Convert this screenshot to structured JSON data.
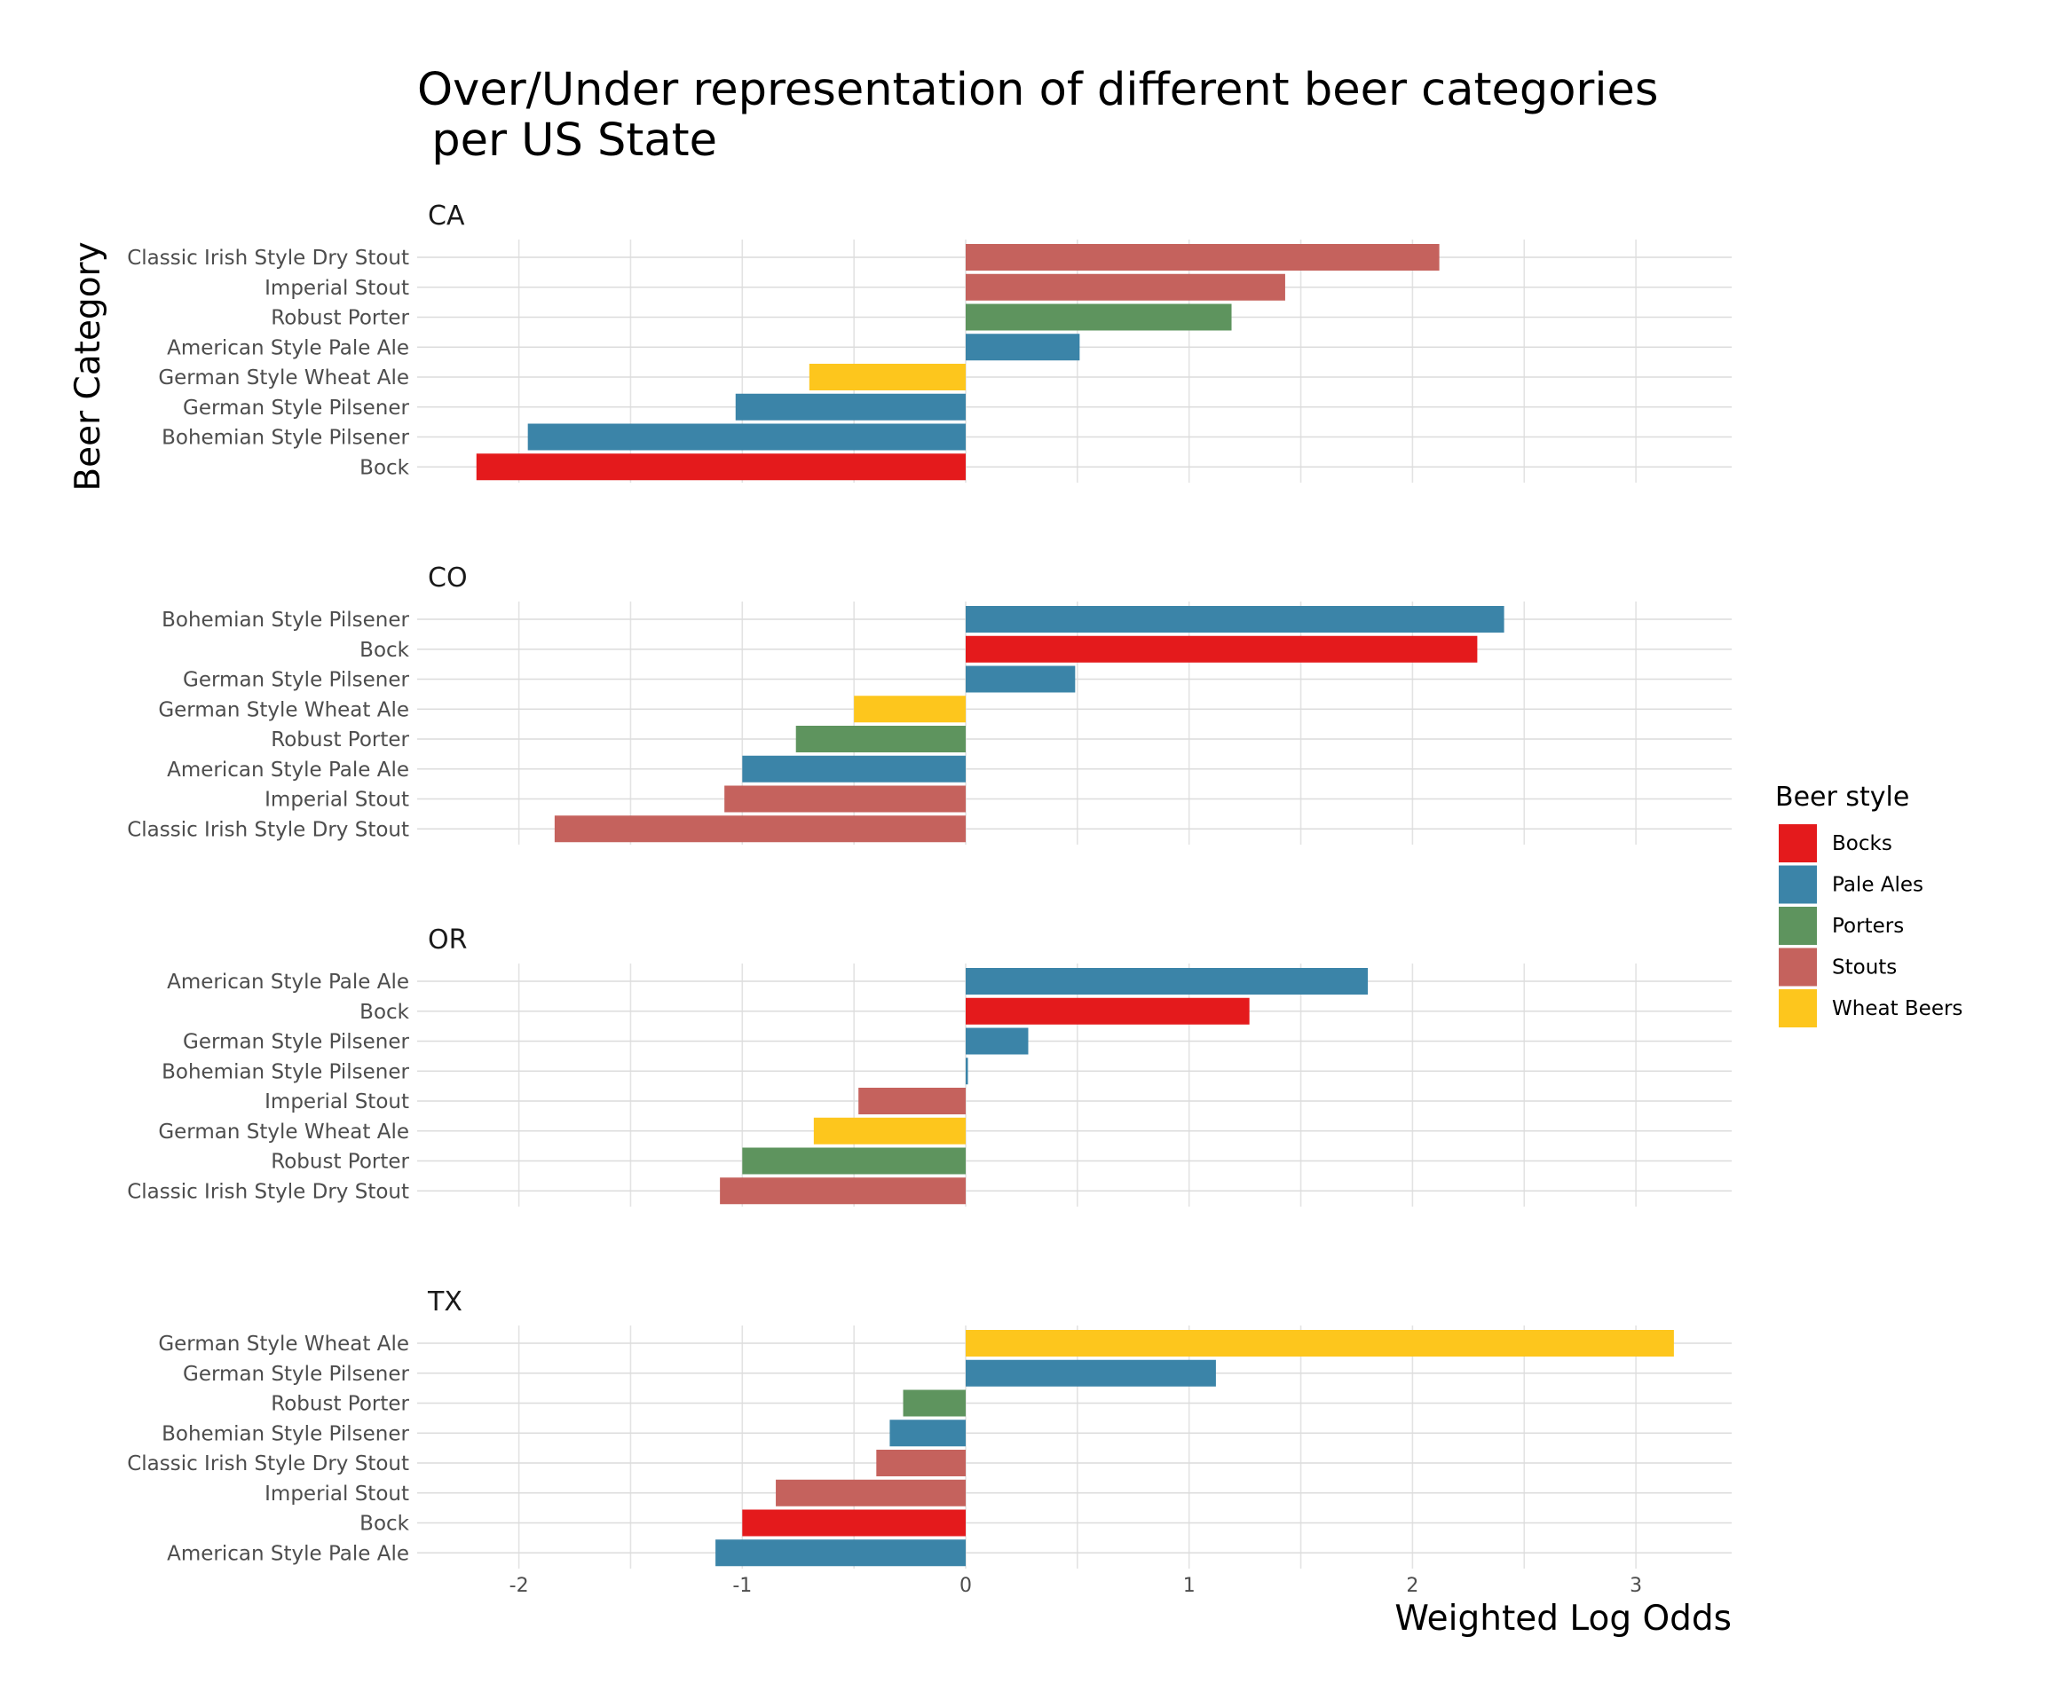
{
  "chart_data": {
    "type": "bar",
    "orientation": "horizontal",
    "title": "Over/Under representation of different beer categories\n per US State",
    "xlabel": "Weighted Log Odds",
    "ylabel": "Beer Category",
    "xlim": [
      -2.45,
      3.45
    ],
    "x_ticks": [
      -2,
      -1,
      0,
      1,
      2,
      3
    ],
    "grid": true,
    "legend": {
      "title": "Beer style",
      "placement": "right",
      "items": [
        {
          "label": "Bocks",
          "color": "#E41A1C"
        },
        {
          "label": "Pale Ales",
          "color": "#3B84A8"
        },
        {
          "label": "Porters",
          "color": "#5E945E"
        },
        {
          "label": "Stouts",
          "color": "#C5625D"
        },
        {
          "label": "Wheat Beers",
          "color": "#FDC61D"
        }
      ]
    },
    "panels": [
      {
        "label": "CA",
        "bars": [
          {
            "category": "Classic Irish Style Dry Stout",
            "value": 2.12,
            "style": "Stouts"
          },
          {
            "category": "Imperial Stout",
            "value": 1.43,
            "style": "Stouts"
          },
          {
            "category": "Robust Porter",
            "value": 1.19,
            "style": "Porters"
          },
          {
            "category": "American Style Pale Ale",
            "value": 0.51,
            "style": "Pale Ales"
          },
          {
            "category": "German Style Wheat Ale",
            "value": -0.7,
            "style": "Wheat Beers"
          },
          {
            "category": "German Style Pilsener",
            "value": -1.03,
            "style": "Pale Ales"
          },
          {
            "category": "Bohemian Style Pilsener",
            "value": -1.96,
            "style": "Pale Ales"
          },
          {
            "category": "Bock",
            "value": -2.19,
            "style": "Bocks"
          }
        ]
      },
      {
        "label": "CO",
        "bars": [
          {
            "category": "Bohemian Style Pilsener",
            "value": 2.41,
            "style": "Pale Ales"
          },
          {
            "category": "Bock",
            "value": 2.29,
            "style": "Bocks"
          },
          {
            "category": "German Style Pilsener",
            "value": 0.49,
            "style": "Pale Ales"
          },
          {
            "category": "German Style Wheat Ale",
            "value": -0.5,
            "style": "Wheat Beers"
          },
          {
            "category": "Robust Porter",
            "value": -0.76,
            "style": "Porters"
          },
          {
            "category": "American Style Pale Ale",
            "value": -1.0,
            "style": "Pale Ales"
          },
          {
            "category": "Imperial Stout",
            "value": -1.08,
            "style": "Stouts"
          },
          {
            "category": "Classic Irish Style Dry Stout",
            "value": -1.84,
            "style": "Stouts"
          }
        ]
      },
      {
        "label": "OR",
        "bars": [
          {
            "category": "American Style Pale Ale",
            "value": 1.8,
            "style": "Pale Ales"
          },
          {
            "category": "Bock",
            "value": 1.27,
            "style": "Bocks"
          },
          {
            "category": "German Style Pilsener",
            "value": 0.28,
            "style": "Pale Ales"
          },
          {
            "category": "Bohemian Style Pilsener",
            "value": 0.01,
            "style": "Pale Ales"
          },
          {
            "category": "Imperial Stout",
            "value": -0.48,
            "style": "Stouts"
          },
          {
            "category": "German Style Wheat Ale",
            "value": -0.68,
            "style": "Wheat Beers"
          },
          {
            "category": "Robust Porter",
            "value": -1.0,
            "style": "Porters"
          },
          {
            "category": "Classic Irish Style Dry Stout",
            "value": -1.1,
            "style": "Stouts"
          }
        ]
      },
      {
        "label": "TX",
        "bars": [
          {
            "category": "German Style Wheat Ale",
            "value": 3.17,
            "style": "Wheat Beers"
          },
          {
            "category": "German Style Pilsener",
            "value": 1.12,
            "style": "Pale Ales"
          },
          {
            "category": "Robust Porter",
            "value": -0.28,
            "style": "Porters"
          },
          {
            "category": "Bohemian Style Pilsener",
            "value": -0.34,
            "style": "Pale Ales"
          },
          {
            "category": "Classic Irish Style Dry Stout",
            "value": -0.4,
            "style": "Stouts"
          },
          {
            "category": "Imperial Stout",
            "value": -0.85,
            "style": "Stouts"
          },
          {
            "category": "Bock",
            "value": -1.0,
            "style": "Bocks"
          },
          {
            "category": "American Style Pale Ale",
            "value": -1.12,
            "style": "Pale Ales"
          }
        ]
      }
    ]
  }
}
